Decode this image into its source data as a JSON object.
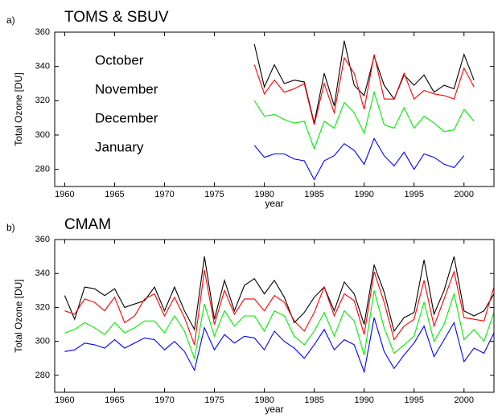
{
  "chart_data": [
    {
      "type": "line",
      "panel_label": "a)",
      "title": "TOMS & SBUV",
      "xlabel": "year",
      "ylabel": "Total Ozone [DU]",
      "xlim": [
        1959,
        2003
      ],
      "xticks": [
        1960,
        1965,
        1970,
        1975,
        1980,
        1985,
        1990,
        1995,
        2000
      ],
      "ylim": [
        270,
        360
      ],
      "yticks": [
        280,
        300,
        320,
        340,
        360
      ],
      "legend": "left",
      "x": [
        1979,
        1980,
        1981,
        1982,
        1983,
        1984,
        1985,
        1986,
        1987,
        1988,
        1989,
        1990,
        1991,
        1992,
        1993,
        1994,
        1995,
        1996,
        1997,
        1998,
        1999,
        2000,
        2001
      ],
      "series": [
        {
          "name": "October",
          "color": "#000000",
          "values": [
            353,
            328,
            341,
            330,
            332,
            331,
            307,
            336,
            317,
            355,
            329,
            323,
            346,
            329,
            321,
            335,
            329,
            335,
            325,
            329,
            327,
            347,
            332
          ]
        },
        {
          "name": "November",
          "color": "#ff0000",
          "values": [
            341,
            324,
            332,
            325,
            327,
            330,
            306,
            330,
            313,
            345,
            336,
            315,
            347,
            321,
            321,
            336,
            321,
            326,
            324,
            323,
            321,
            339,
            328
          ]
        },
        {
          "name": "December",
          "color": "#00ee00",
          "values": [
            320,
            311,
            312,
            309,
            307,
            308,
            292,
            308,
            304,
            319,
            313,
            301,
            325,
            306,
            304,
            316,
            304,
            311,
            307,
            302,
            303,
            315,
            308
          ]
        },
        {
          "name": "January",
          "color": "#0000ff",
          "values": [
            294,
            287,
            289,
            289,
            286,
            285,
            274,
            285,
            288,
            295,
            291,
            283,
            298,
            288,
            282,
            290,
            280,
            289,
            287,
            283,
            281,
            288,
            null
          ]
        }
      ]
    },
    {
      "type": "line",
      "panel_label": "b)",
      "title": "CMAM",
      "xlabel": "year",
      "ylabel": "Total Ozone [DU]",
      "xlim": [
        1959,
        2003
      ],
      "xticks": [
        1960,
        1965,
        1970,
        1975,
        1980,
        1985,
        1990,
        1995,
        2000
      ],
      "ylim": [
        270,
        360
      ],
      "yticks": [
        280,
        300,
        320,
        340,
        360
      ],
      "x": [
        1960,
        1961,
        1962,
        1963,
        1964,
        1965,
        1966,
        1967,
        1968,
        1969,
        1970,
        1971,
        1972,
        1973,
        1974,
        1975,
        1976,
        1977,
        1978,
        1979,
        1980,
        1981,
        1982,
        1983,
        1984,
        1985,
        1986,
        1987,
        1988,
        1989,
        1990,
        1991,
        1992,
        1993,
        1994,
        1995,
        1996,
        1997,
        1998,
        1999,
        2000,
        2001,
        2002,
        2003
      ],
      "series": [
        {
          "color": "#000000",
          "values": [
            327,
            313,
            332,
            331,
            327,
            331,
            320,
            322,
            324,
            332,
            318,
            332,
            318,
            307,
            350,
            313,
            336,
            318,
            333,
            337,
            328,
            336,
            326,
            311,
            317,
            326,
            332,
            318,
            335,
            328,
            310,
            345,
            329,
            306,
            314,
            317,
            348,
            316,
            330,
            350,
            318,
            315,
            318,
            328
          ]
        },
        {
          "color": "#ff0000",
          "values": [
            318,
            316,
            325,
            323,
            318,
            326,
            311,
            315,
            325,
            328,
            315,
            326,
            314,
            298,
            342,
            310,
            330,
            316,
            325,
            325,
            318,
            327,
            323,
            312,
            306,
            317,
            332,
            315,
            328,
            324,
            304,
            341,
            323,
            301,
            309,
            313,
            336,
            309,
            325,
            341,
            314,
            313,
            312,
            332
          ]
        },
        {
          "color": "#00ee00",
          "values": [
            305,
            307,
            311,
            308,
            304,
            311,
            305,
            308,
            312,
            312,
            305,
            315,
            306,
            290,
            322,
            303,
            318,
            309,
            315,
            315,
            306,
            318,
            315,
            303,
            298,
            306,
            317,
            303,
            318,
            312,
            292,
            330,
            308,
            293,
            298,
            303,
            323,
            300,
            310,
            328,
            301,
            307,
            300,
            317
          ]
        },
        {
          "color": "#0000ff",
          "values": [
            294,
            295,
            299,
            298,
            296,
            301,
            296,
            299,
            302,
            301,
            295,
            300,
            294,
            283,
            308,
            295,
            304,
            299,
            303,
            302,
            295,
            306,
            300,
            296,
            290,
            298,
            307,
            295,
            301,
            298,
            282,
            314,
            294,
            284,
            292,
            299,
            309,
            291,
            301,
            311,
            288,
            296,
            293,
            305
          ]
        }
      ]
    }
  ]
}
